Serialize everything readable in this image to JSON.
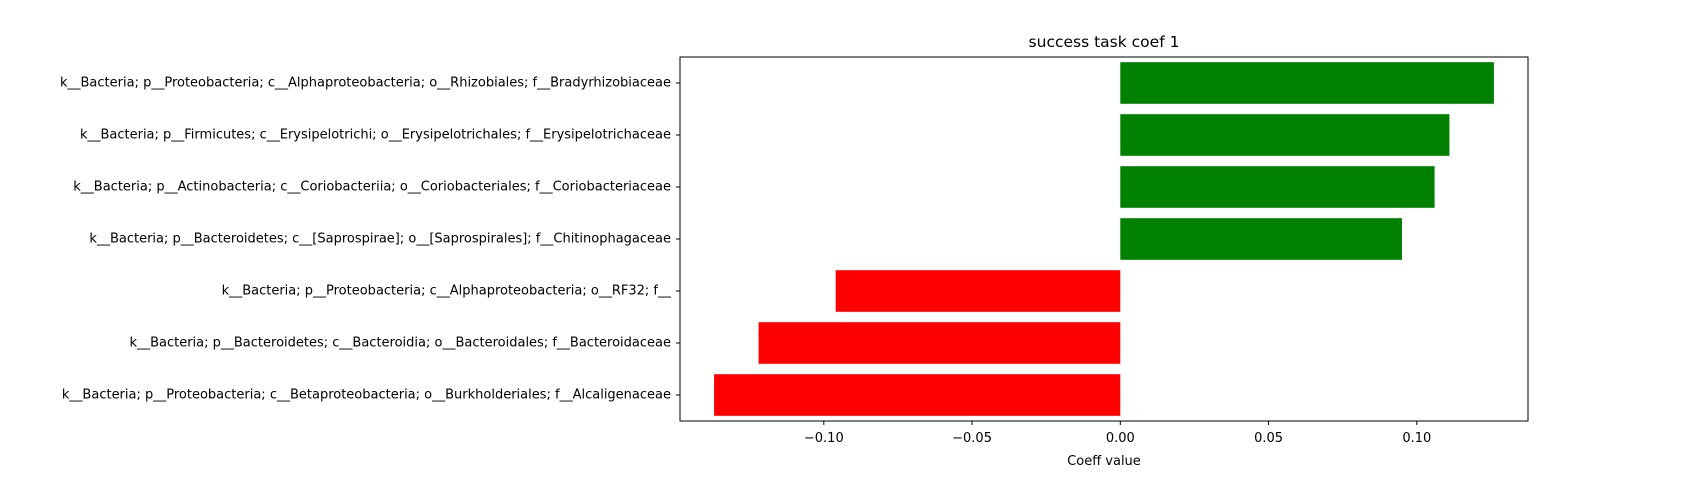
{
  "chart_data": {
    "type": "bar",
    "orientation": "horizontal",
    "title": "success task coef 1",
    "xlabel": "Coeff value",
    "ylabel": "",
    "xlim": [
      -0.1485,
      0.1375
    ],
    "xticks": [
      -0.1,
      -0.05,
      0.0,
      0.05,
      0.1
    ],
    "xtick_labels": [
      "−0.10",
      "−0.05",
      "0.00",
      "0.05",
      "0.10"
    ],
    "grid": false,
    "legend": "none",
    "colors": {
      "positive": "#008000",
      "negative": "#ff0000"
    },
    "categories": [
      "k__Bacteria; p__Proteobacteria; c__Alphaproteobacteria; o__Rhizobiales; f__Bradyrhizobiaceae",
      "k__Bacteria; p__Firmicutes; c__Erysipelotrichi; o__Erysipelotrichales; f__Erysipelotrichaceae",
      "k__Bacteria; p__Actinobacteria; c__Coriobacteriia; o__Coriobacteriales; f__Coriobacteriaceae",
      "k__Bacteria; p__Bacteroidetes; c__[Saprospirae]; o__[Saprospirales]; f__Chitinophagaceae",
      "k__Bacteria; p__Proteobacteria; c__Alphaproteobacteria; o__RF32; f__",
      "k__Bacteria; p__Bacteroidetes; c__Bacteroidia; o__Bacteroidales; f__Bacteroidaceae",
      "k__Bacteria; p__Proteobacteria; c__Betaproteobacteria; o__Burkholderiales; f__Alcaligenaceae"
    ],
    "values": [
      0.126,
      0.111,
      0.106,
      0.095,
      -0.096,
      -0.122,
      -0.137
    ]
  }
}
